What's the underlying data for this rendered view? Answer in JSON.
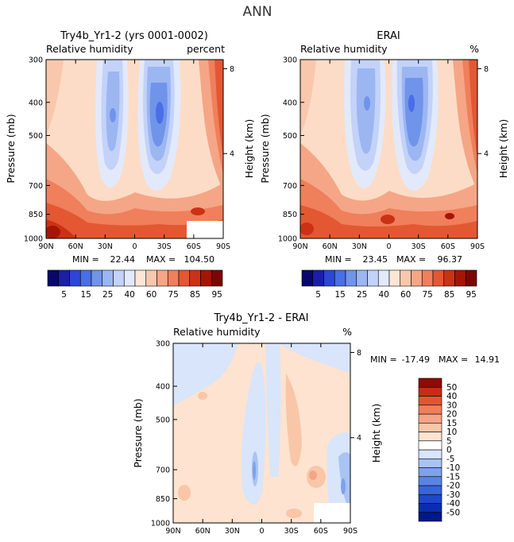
{
  "figure_title": "ANN",
  "chart_data": [
    {
      "type": "contour",
      "title": "Try4b_Yr1-2 (yrs 0001-0002)",
      "variable_label": "Relative humidity",
      "units_label": "percent",
      "ylabel": "Pressure (mb)",
      "right_label": "Height (km)",
      "x_ticks": [
        "90N",
        "60N",
        "30N",
        "0",
        "30S",
        "60S",
        "90S"
      ],
      "y_ticks": [
        "300",
        "400",
        "500",
        "700",
        "850",
        "1000"
      ],
      "right_ticks": [
        "8",
        "4"
      ],
      "min_label": "MIN =",
      "min_value": "22.44",
      "max_label": "MAX =",
      "max_value": "104.50",
      "colorbar_labels": [
        "5",
        "15",
        "25",
        "40",
        "60",
        "75",
        "85",
        "95"
      ]
    },
    {
      "type": "contour",
      "title": "ERAI",
      "variable_label": "Relative humidity",
      "units_label": "%",
      "ylabel": "Pressure (mb)",
      "right_label": "Height (km)",
      "x_ticks": [
        "90N",
        "60N",
        "30N",
        "0",
        "30S",
        "60S",
        "90S"
      ],
      "y_ticks": [
        "300",
        "400",
        "500",
        "700",
        "850",
        "1000"
      ],
      "right_ticks": [
        "8",
        "4"
      ],
      "min_label": "MIN =",
      "min_value": "23.45",
      "max_label": "MAX =",
      "max_value": "96.37",
      "colorbar_labels": [
        "5",
        "15",
        "25",
        "40",
        "60",
        "75",
        "85",
        "95"
      ]
    },
    {
      "type": "contour",
      "title": "Try4b_Yr1-2 - ERAI",
      "variable_label": "Relative humidity",
      "units_label": "%",
      "ylabel": "Pressure (mb)",
      "right_label": "Height (km)",
      "x_ticks": [
        "90N",
        "60N",
        "30N",
        "0",
        "30S",
        "60S",
        "90S"
      ],
      "y_ticks": [
        "300",
        "400",
        "500",
        "700",
        "850",
        "1000"
      ],
      "right_ticks": [
        "8",
        "4"
      ],
      "min_label": "MIN =",
      "min_value": "-17.49",
      "max_label": "MAX =",
      "max_value": "14.91",
      "colorbar_labels": [
        "50",
        "40",
        "30",
        "20",
        "15",
        "10",
        "5",
        "0",
        "-5",
        "-10",
        "-15",
        "-20",
        "-30",
        "-40",
        "-50"
      ]
    }
  ],
  "colors": {
    "abs_scale": [
      "#08086b",
      "#1a1fa8",
      "#2c46d6",
      "#4a6ee6",
      "#7094ea",
      "#9cb6f2",
      "#c3d2f8",
      "#e2e9fb",
      "#fde6d5",
      "#f9c8ac",
      "#f5a686",
      "#f07f5c",
      "#e45733",
      "#cc3115",
      "#a51505",
      "#7a0703"
    ],
    "diff_scale": [
      "#001888",
      "#0a2db0",
      "#1d47cf",
      "#3765dc",
      "#5a84e4",
      "#7ea1ec",
      "#a9c3f3",
      "#d8e5fa",
      "#ffffff",
      "#fde3d0",
      "#f9c6a8",
      "#f5a584",
      "#ef7f5b",
      "#e05634",
      "#c52d14",
      "#8c0c02"
    ]
  }
}
